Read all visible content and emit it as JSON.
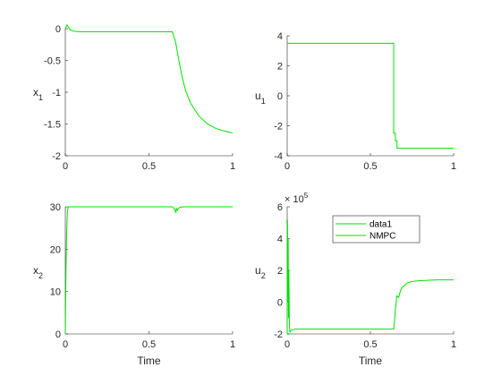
{
  "chart_data": [
    {
      "type": "line",
      "ylabel": "x",
      "ylabel_sub": "1",
      "xlabel": "",
      "xlim": [
        0,
        1
      ],
      "ylim": [
        -2,
        0
      ],
      "xticks": [
        0,
        0.5,
        1
      ],
      "xtick_labels": [
        "0",
        "0.5",
        "1"
      ],
      "yticks": [
        0,
        -0.5,
        -1,
        -1.5,
        -2
      ],
      "ytick_labels": [
        "0",
        "-0.5",
        "-1",
        "-1.5",
        "-2"
      ],
      "series": [
        {
          "x": [
            0,
            0.01,
            0.03,
            0.05,
            0.1,
            0.2,
            0.3,
            0.4,
            0.5,
            0.6,
            0.64,
            0.66,
            0.68,
            0.7,
            0.72,
            0.75,
            0.8,
            0.85,
            0.9,
            0.95,
            1.0
          ],
          "y": [
            0,
            0.06,
            -0.02,
            -0.04,
            -0.05,
            -0.05,
            -0.05,
            -0.05,
            -0.05,
            -0.05,
            -0.05,
            -0.22,
            -0.52,
            -0.78,
            -0.98,
            -1.18,
            -1.38,
            -1.5,
            -1.57,
            -1.61,
            -1.64
          ]
        }
      ]
    },
    {
      "type": "line",
      "ylabel": "u",
      "ylabel_sub": "1",
      "xlabel": "",
      "xlim": [
        0,
        1
      ],
      "ylim": [
        -4,
        4
      ],
      "xticks": [
        0,
        0.5,
        1
      ],
      "xtick_labels": [
        "0",
        "0.5",
        "1"
      ],
      "yticks": [
        4,
        2,
        0,
        -2,
        -4
      ],
      "ytick_labels": [
        "4",
        "2",
        "0",
        "-2",
        "-4"
      ],
      "series": [
        {
          "x": [
            0,
            0.64,
            0.64,
            0.65,
            0.65,
            0.66,
            0.66,
            1.0
          ],
          "y": [
            3.5,
            3.5,
            -2.5,
            -2.5,
            -3.0,
            -3.0,
            -3.5,
            -3.5
          ]
        }
      ]
    },
    {
      "type": "line",
      "ylabel": "x",
      "ylabel_sub": "2",
      "xlabel": "Time",
      "xlim": [
        0,
        1
      ],
      "ylim": [
        0,
        30
      ],
      "xticks": [
        0,
        0.5,
        1
      ],
      "xtick_labels": [
        "0",
        "0.5",
        "1"
      ],
      "yticks": [
        30,
        20,
        10,
        0
      ],
      "ytick_labels": [
        "30",
        "20",
        "10",
        "0"
      ],
      "series": [
        {
          "x": [
            0,
            0.003,
            0.008,
            0.012,
            0.016,
            0.02,
            0.025,
            0.03,
            0.1,
            0.3,
            0.5,
            0.64,
            0.655,
            0.66,
            0.665,
            0.67,
            0.68,
            0.7,
            1.0
          ],
          "y": [
            0,
            12,
            24,
            28.5,
            29.8,
            30,
            30,
            30,
            30,
            30,
            30,
            30,
            29.4,
            28.6,
            29.6,
            29.2,
            29.8,
            30,
            30
          ]
        }
      ]
    },
    {
      "type": "line",
      "ylabel": "u",
      "ylabel_sub": "2",
      "xlabel": "Time",
      "exponent_base": "× 10",
      "exponent_power": "5",
      "xlim": [
        0,
        1
      ],
      "ylim": [
        -2,
        6
      ],
      "xticks": [
        0,
        0.5,
        1
      ],
      "xtick_labels": [
        "0",
        "0.5",
        "1"
      ],
      "yticks": [
        6,
        4,
        2,
        0,
        -2
      ],
      "ytick_labels": [
        "6",
        "4",
        "2",
        "0",
        "-2"
      ],
      "legend": {
        "placement": "top-center",
        "entries": [
          "data1",
          "NMPC"
        ]
      },
      "series": [
        {
          "name": "data1",
          "x": [
            0,
            0.002,
            0.004,
            0.006,
            0.008,
            0.01,
            0.013,
            0.016,
            0.02,
            0.03,
            0.05,
            0.1,
            0.2,
            0.3,
            0.4,
            0.5,
            0.6,
            0.64,
            0.645,
            0.65,
            0.655,
            0.66,
            0.67,
            0.68,
            0.69,
            0.7,
            0.72,
            0.75,
            0.8,
            0.9,
            1.0
          ],
          "y": [
            -2,
            5.2,
            0,
            4,
            -1,
            2,
            -1.2,
            -1.9,
            -1.8,
            -1.75,
            -1.7,
            -1.7,
            -1.7,
            -1.7,
            -1.7,
            -1.7,
            -1.7,
            -1.7,
            -1.2,
            -0.5,
            0,
            0.4,
            0.3,
            0.7,
            0.9,
            1.0,
            1.2,
            1.3,
            1.35,
            1.4,
            1.4
          ]
        },
        {
          "name": "NMPC",
          "x": [],
          "y": []
        }
      ]
    }
  ]
}
